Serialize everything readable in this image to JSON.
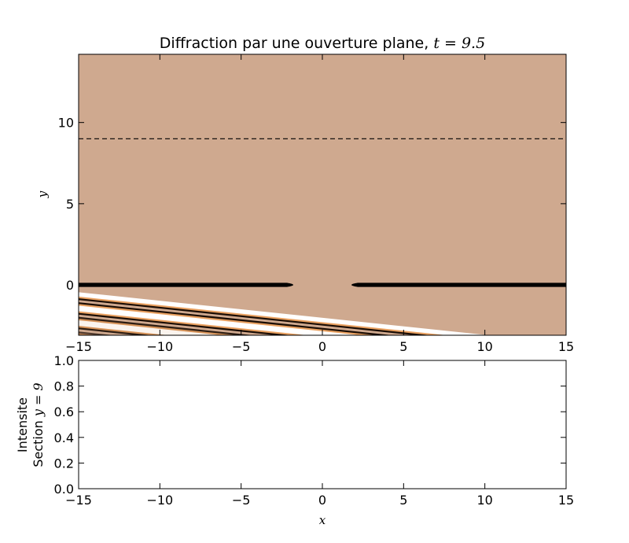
{
  "chart_data": [
    {
      "type": "heatmap",
      "title_text": "Diffraction par une ouverture plane, ",
      "title_math": "t = 9.5",
      "xlabel": "",
      "ylabel": "y",
      "xlim": [
        -15,
        15
      ],
      "ylim": [
        -3.1,
        14.2
      ],
      "xticks": [
        -15,
        -10,
        -5,
        0,
        5,
        10,
        15
      ],
      "xtick_labels": [
        "−15",
        "−10",
        "−5",
        "0",
        "5",
        "10",
        "15"
      ],
      "yticks": [
        0,
        5,
        10
      ],
      "ytick_labels": [
        "0",
        "5",
        "10"
      ],
      "background_color": "#cfa98f",
      "section_line": {
        "y": 9,
        "style": "dashed"
      },
      "barrier": {
        "y": 0,
        "segments": [
          [
            -15,
            -1.5
          ],
          [
            1.5,
            15
          ]
        ]
      },
      "wave_bands": [
        {
          "intercept": -0.55,
          "slope": -0.105,
          "intensity": 1.0
        },
        {
          "intercept": -1.45,
          "slope": -0.105,
          "intensity": 1.0
        },
        {
          "intercept": -2.35,
          "slope": -0.105,
          "intensity": 0.9
        },
        {
          "intercept": -3.25,
          "slope": -0.105,
          "intensity": 0.7
        }
      ],
      "wave_front": {
        "intercept": -0.45,
        "slope": -0.105
      }
    },
    {
      "type": "line",
      "ylabel_line1": "Intensite",
      "ylabel_line2": "Section ",
      "ylabel_math": "y = 9",
      "xlabel": "x",
      "xlim": [
        -15,
        15
      ],
      "ylim": [
        0,
        1
      ],
      "xticks": [
        -15,
        -10,
        -5,
        0,
        5,
        10,
        15
      ],
      "xtick_labels": [
        "−15",
        "−10",
        "−5",
        "0",
        "5",
        "10",
        "15"
      ],
      "yticks": [
        0,
        0.2,
        0.4,
        0.6,
        0.8,
        1.0
      ],
      "ytick_labels": [
        "0.0",
        "0.2",
        "0.4",
        "0.6",
        "0.8",
        "1.0"
      ],
      "series": []
    }
  ]
}
